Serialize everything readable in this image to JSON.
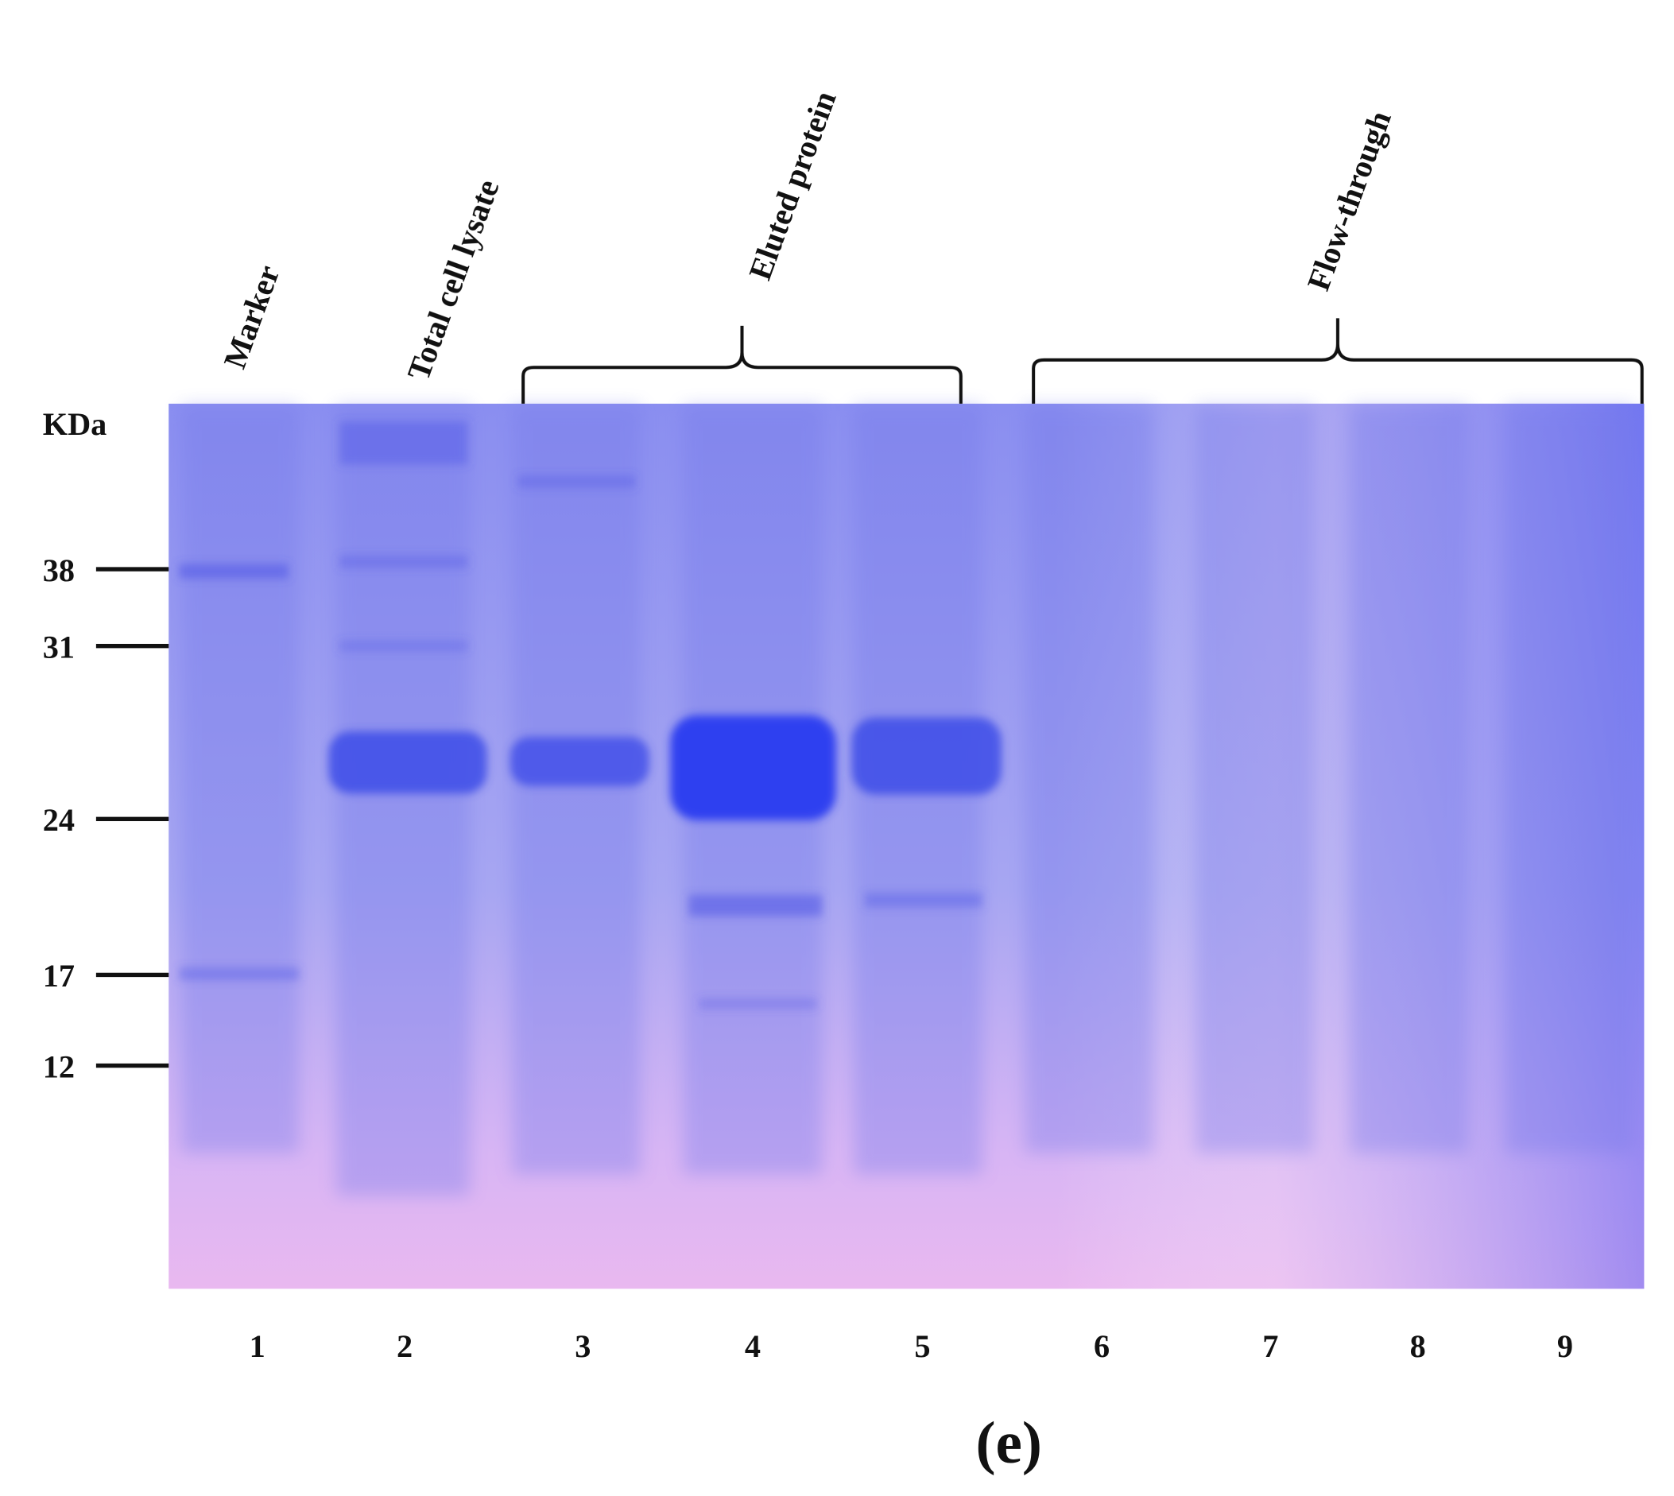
{
  "headers": {
    "marker": "Marker",
    "total_cell_lysate": "Total cell lysate",
    "eluted_protein": "Eluted protein",
    "flow_through": "Flow-through"
  },
  "unit": "KDa",
  "markers": [
    38,
    31,
    24,
    17,
    12
  ],
  "lanes": [
    1,
    2,
    3,
    4,
    5,
    6,
    7,
    8,
    9
  ],
  "caption": "(e)"
}
